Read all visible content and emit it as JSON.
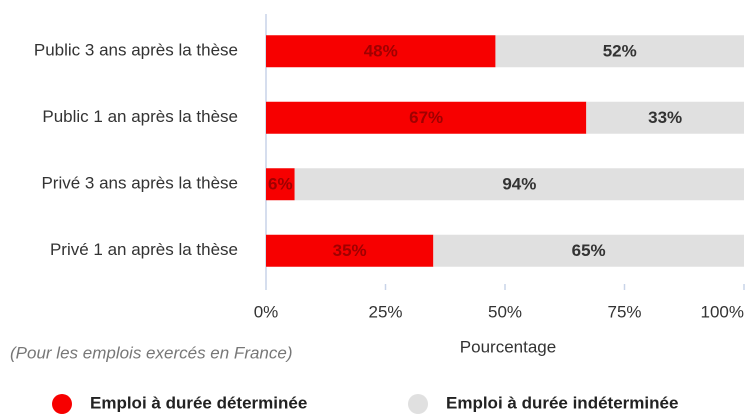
{
  "chart_data": {
    "type": "stacked_barh",
    "categories": [
      "Public 3 ans après la thèse",
      "Public 1 an après la thèse",
      "Privé 3 ans après la thèse",
      "Privé 1 an après la thèse"
    ],
    "series": [
      {
        "name": "Emploi à durée déterminée",
        "color": "#f70000",
        "values": [
          48,
          67,
          6,
          35
        ],
        "value_labels": [
          "48%",
          "67%",
          "6%",
          "35%"
        ]
      },
      {
        "name": "Emploi à durée indéterminée",
        "color": "#e0e0e0",
        "values": [
          52,
          33,
          94,
          65
        ],
        "value_labels": [
          "52%",
          "33%",
          "94%",
          "65%"
        ]
      }
    ],
    "xlabel": "Pourcentage",
    "annotation": "(Pour les emplois exercés en France)",
    "xlim": [
      0,
      100
    ],
    "xticks": [
      {
        "value": 0,
        "label": "0%"
      },
      {
        "value": 25,
        "label": "25%"
      },
      {
        "value": 50,
        "label": "50%"
      },
      {
        "value": 75,
        "label": "75%"
      },
      {
        "value": 100,
        "label": "100%"
      }
    ],
    "legend": "bottom"
  }
}
